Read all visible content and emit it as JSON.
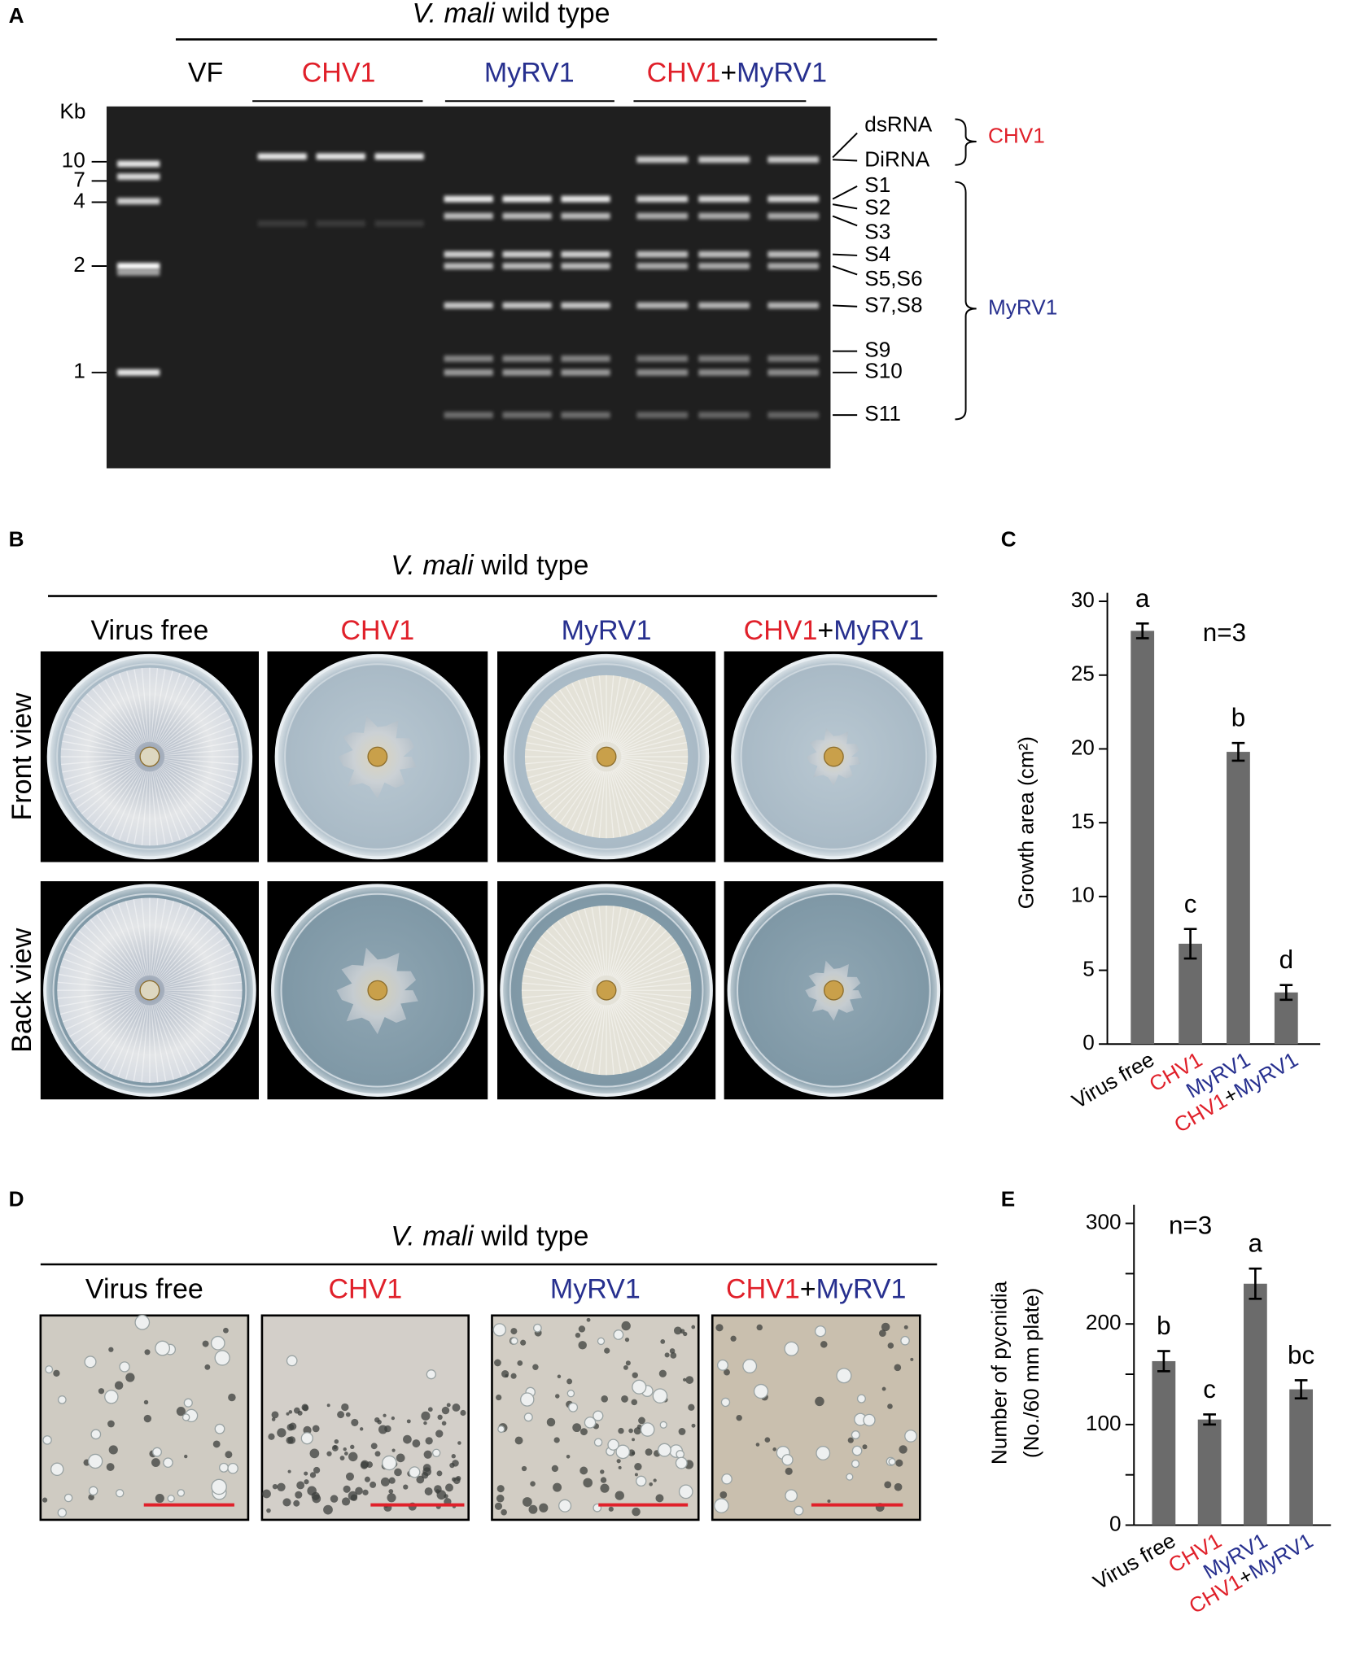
{
  "label_colors": {
    "CHV1": "#e0202a",
    "MyRV1": "#27308f"
  },
  "panels": {
    "A": {
      "label": "A",
      "title": {
        "species": "V. mali",
        "strain": "wild type"
      },
      "groups": [
        "VF",
        "CHV1",
        "MyRV1",
        "CHV1+MyRV1"
      ],
      "unit": "Kb",
      "ladder": [
        10,
        7,
        4,
        2,
        1
      ],
      "bands": [
        "dsRNA",
        "DiRNA",
        "S1",
        "S2",
        "S3",
        "S4",
        "S5,S6",
        "S7,S8",
        "S9",
        "S10",
        "S11"
      ],
      "brackets": [
        "CHV1",
        "MyRV1"
      ]
    },
    "B": {
      "label": "B",
      "title": {
        "species": "V. mali",
        "strain": "wild type"
      },
      "columns": [
        "Virus free",
        "CHV1",
        "MyRV1",
        "CHV1+MyRV1"
      ],
      "rows": [
        "Front view",
        "Back view"
      ]
    },
    "D": {
      "label": "D",
      "title": {
        "species": "V. mali",
        "strain": "wild type"
      },
      "columns": [
        "Virus free",
        "CHV1",
        "MyRV1",
        "CHV1+MyRV1"
      ]
    }
  },
  "chart_data": [
    {
      "type": "bar",
      "panel": "C",
      "y_label": [
        "Growth area (cm²)"
      ],
      "note": "n=3",
      "categories": [
        "Virus free",
        "CHV1",
        "MyRV1",
        "CHV1+MyRV1"
      ],
      "values": [
        28,
        6.8,
        19.8,
        3.5
      ],
      "errors": [
        0.5,
        1,
        0.6,
        0.5
      ],
      "annotations": [
        "a",
        "c",
        "b",
        "d"
      ],
      "color": "#6b6b6b",
      "ylim": [
        0,
        30
      ],
      "yticks": [
        0,
        5,
        10,
        15,
        20,
        25,
        30
      ]
    },
    {
      "type": "bar",
      "panel": "E",
      "y_label": [
        "Number of pycnidia",
        "(No./60 mm plate)"
      ],
      "note": "n=3",
      "categories": [
        "Virus free",
        "CHV1",
        "MyRV1",
        "CHV1+MyRV1"
      ],
      "values": [
        163,
        105,
        240,
        135
      ],
      "errors": [
        10,
        5,
        15,
        9
      ],
      "annotations": [
        "b",
        "c",
        "a",
        "bc"
      ],
      "color": "#6b6b6b",
      "ylim": [
        0,
        310
      ],
      "yticks": [
        0,
        100,
        200,
        300
      ],
      "minor_yticks": [
        50,
        150,
        250
      ]
    }
  ]
}
